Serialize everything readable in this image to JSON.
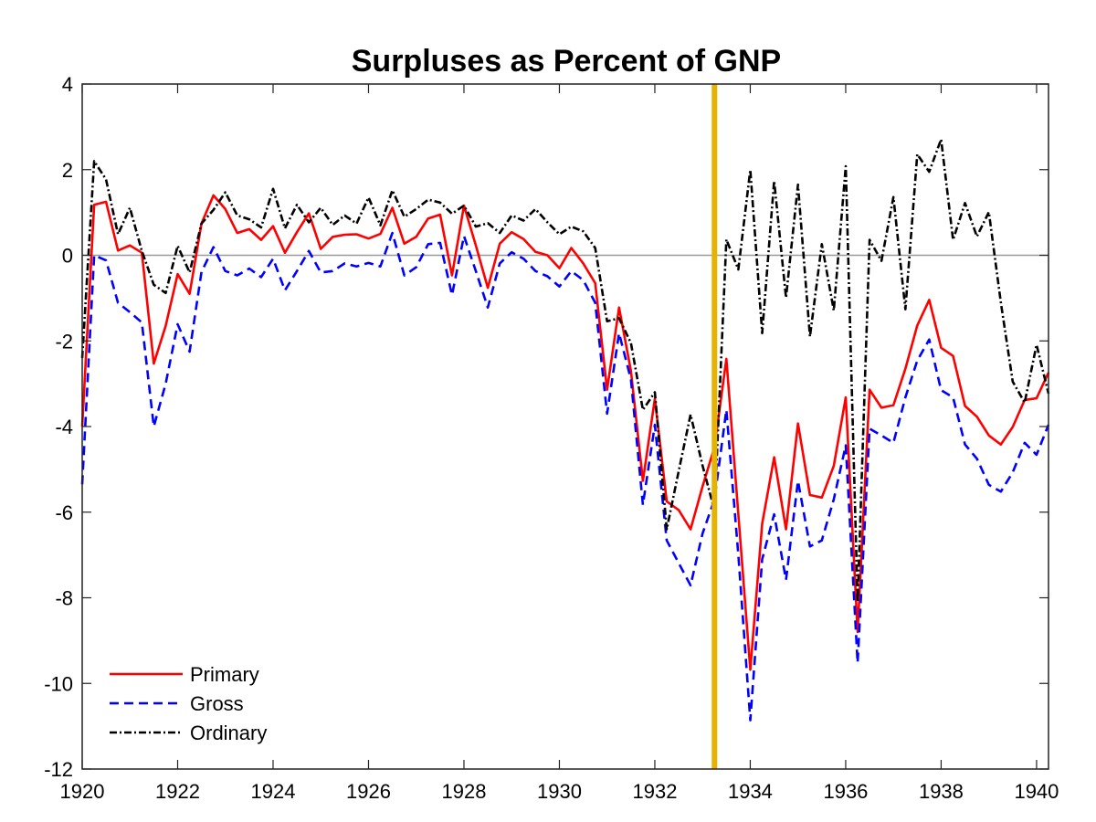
{
  "chart_data": {
    "type": "line",
    "title": "Surpluses as Percent of GNP",
    "xlabel": "",
    "ylabel": "",
    "xlim": [
      1920,
      1940.25
    ],
    "ylim": [
      -12,
      4
    ],
    "x_start": 1920,
    "x_step": 0.25,
    "xticks": [
      1920,
      1922,
      1924,
      1926,
      1928,
      1930,
      1932,
      1934,
      1936,
      1938,
      1940
    ],
    "yticks": [
      4,
      2,
      0,
      -2,
      -4,
      -6,
      -8,
      -10,
      -12
    ],
    "grid": false,
    "zero_line": true,
    "vline_x": 1933.25,
    "vline_color": "#e6b400",
    "legend_position": "bottom-left",
    "series": [
      {
        "name": "Primary",
        "color": "#ff0000",
        "style": "solid",
        "values": [
          -4.0,
          1.18,
          1.25,
          0.11,
          0.23,
          0.06,
          -2.53,
          -1.65,
          -0.44,
          -0.9,
          0.74,
          1.4,
          1.08,
          0.52,
          0.61,
          0.36,
          0.68,
          0.06,
          0.54,
          0.98,
          0.15,
          0.43,
          0.48,
          0.49,
          0.39,
          0.5,
          1.11,
          0.27,
          0.43,
          0.86,
          0.95,
          -0.47,
          1.16,
          0.23,
          -0.76,
          0.27,
          0.54,
          0.38,
          0.08,
          0.0,
          -0.3,
          0.17,
          -0.19,
          -0.65,
          -3.14,
          -1.22,
          -2.7,
          -5.27,
          -3.35,
          -5.75,
          -5.95,
          -6.4,
          -5.4,
          -4.48,
          -2.42,
          -6.05,
          -9.68,
          -6.27,
          -4.72,
          -6.4,
          -3.93,
          -5.6,
          -5.66,
          -4.92,
          -3.32,
          -8.8,
          -3.14,
          -3.56,
          -3.5,
          -2.65,
          -1.64,
          -1.04,
          -2.16,
          -2.35,
          -3.52,
          -3.77,
          -4.21,
          -4.42,
          -4.01,
          -3.38,
          -3.34,
          -2.74
        ]
      },
      {
        "name": "Gross",
        "color": "#0000ff",
        "style": "dashed",
        "values": [
          -5.35,
          0.0,
          -0.12,
          -1.11,
          -1.33,
          -1.57,
          -4.0,
          -3.0,
          -1.61,
          -2.25,
          -0.39,
          0.19,
          -0.37,
          -0.47,
          -0.31,
          -0.51,
          -0.08,
          -0.82,
          -0.37,
          0.1,
          -0.4,
          -0.37,
          -0.19,
          -0.26,
          -0.18,
          -0.26,
          0.52,
          -0.47,
          -0.28,
          0.26,
          0.29,
          -0.93,
          0.45,
          -0.37,
          -1.22,
          -0.19,
          0.07,
          -0.08,
          -0.37,
          -0.49,
          -0.73,
          -0.37,
          -0.58,
          -1.11,
          -3.7,
          -1.82,
          -2.9,
          -5.83,
          -3.96,
          -6.66,
          -7.19,
          -7.71,
          -6.5,
          -5.7,
          -3.61,
          -7.0,
          -10.86,
          -7.1,
          -6.05,
          -7.58,
          -5.27,
          -6.8,
          -6.66,
          -5.7,
          -4.44,
          -9.52,
          -4.05,
          -4.21,
          -4.38,
          -3.32,
          -2.46,
          -1.97,
          -3.15,
          -3.32,
          -4.42,
          -4.75,
          -5.36,
          -5.52,
          -5.07,
          -4.38,
          -4.66,
          -3.96
        ]
      },
      {
        "name": "Ordinary",
        "color": "#000000",
        "style": "dashdot",
        "values": [
          -2.4,
          2.2,
          1.77,
          0.49,
          1.11,
          0.1,
          -0.69,
          -0.88,
          0.22,
          -0.4,
          0.74,
          1.06,
          1.47,
          0.93,
          0.84,
          0.65,
          1.55,
          0.63,
          1.18,
          0.77,
          1.11,
          0.71,
          0.93,
          0.74,
          1.35,
          0.7,
          1.52,
          0.9,
          1.08,
          1.3,
          1.23,
          0.97,
          1.16,
          0.67,
          0.75,
          0.52,
          0.93,
          0.81,
          1.08,
          0.77,
          0.49,
          0.67,
          0.56,
          0.17,
          -1.54,
          -1.47,
          -2.05,
          -3.61,
          -3.2,
          -6.4,
          -5.04,
          -3.72,
          -4.91,
          -5.96,
          0.37,
          -0.33,
          2.0,
          -1.82,
          1.74,
          -0.99,
          1.65,
          -1.9,
          0.26,
          -1.29,
          2.08,
          -8.1,
          0.36,
          -0.13,
          1.36,
          -1.26,
          2.36,
          1.95,
          2.71,
          0.36,
          1.22,
          0.44,
          1.01,
          -1.1,
          -2.95,
          -3.44,
          -2.09,
          -3.23
        ]
      }
    ]
  }
}
